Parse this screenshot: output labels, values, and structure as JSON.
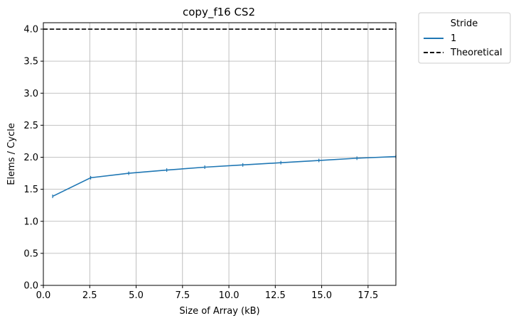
{
  "chart_data": {
    "type": "line",
    "title": "copy_f16 CS2",
    "xlabel": "Size of Array (kB)",
    "ylabel": "Elems / Cycle",
    "xlim": [
      0,
      19
    ],
    "ylim": [
      0,
      4.1
    ],
    "xticks": [
      0,
      2.5,
      5,
      7.5,
      10,
      12.5,
      15,
      17.5
    ],
    "xtick_labels": [
      "0.0",
      "2.5",
      "5.0",
      "7.5",
      "10.0",
      "12.5",
      "15.0",
      "17.5"
    ],
    "yticks": [
      0,
      0.5,
      1,
      1.5,
      2,
      2.5,
      3,
      3.5,
      4
    ],
    "ytick_labels": [
      "0.0",
      "0.5",
      "1.0",
      "1.5",
      "2.0",
      "2.5",
      "3.0",
      "3.5",
      "4.0"
    ],
    "grid": true,
    "legend": {
      "title": "Stride",
      "placement": "outside-top-right",
      "entries": [
        {
          "label": "1",
          "style": "solid",
          "color": "#1f77b4"
        },
        {
          "label": "Theoretical",
          "style": "dashed",
          "color": "#000000"
        }
      ]
    },
    "series": [
      {
        "name": "1",
        "color": "#1f77b4",
        "x": [
          0.5,
          2.55,
          4.6,
          6.65,
          8.7,
          10.75,
          12.8,
          14.85,
          16.9,
          19.0
        ],
        "y": [
          1.39,
          1.68,
          1.75,
          1.8,
          1.845,
          1.88,
          1.915,
          1.95,
          1.985,
          2.01
        ]
      }
    ],
    "reference_lines": [
      {
        "name": "Theoretical",
        "y": 4.0,
        "color": "#000000",
        "style": "dashed"
      }
    ]
  }
}
